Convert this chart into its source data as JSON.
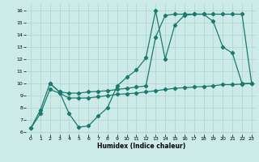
{
  "xlabel": "Humidex (Indice chaleur)",
  "bg_color": "#cceae8",
  "grid_color": "#afd4d2",
  "line_color": "#1a7a6e",
  "xlim": [
    -0.5,
    23.5
  ],
  "ylim": [
    5.8,
    16.6
  ],
  "xticks": [
    0,
    1,
    2,
    3,
    4,
    5,
    6,
    7,
    8,
    9,
    10,
    11,
    12,
    13,
    14,
    15,
    16,
    17,
    18,
    19,
    20,
    21,
    22,
    23
  ],
  "yticks": [
    6,
    7,
    8,
    9,
    10,
    11,
    12,
    13,
    14,
    15,
    16
  ],
  "line1_x": [
    0,
    1,
    2,
    3,
    4,
    5,
    6,
    7,
    8,
    9,
    10,
    11,
    12,
    13,
    14,
    15,
    16,
    17,
    18,
    19,
    20,
    21,
    22,
    23
  ],
  "line1_y": [
    6.3,
    7.8,
    10.0,
    9.3,
    7.5,
    6.4,
    6.5,
    7.3,
    8.0,
    9.8,
    10.5,
    11.1,
    12.1,
    16.0,
    12.0,
    14.8,
    15.6,
    15.7,
    15.7,
    15.1,
    13.0,
    12.5,
    10.0,
    10.0
  ],
  "line2_x": [
    2,
    3,
    4,
    5,
    6,
    7,
    8,
    9,
    10,
    11,
    12,
    13,
    14,
    15,
    16,
    17,
    18,
    19,
    20,
    21,
    22,
    23
  ],
  "line2_y": [
    10.0,
    9.3,
    9.2,
    9.2,
    9.3,
    9.35,
    9.4,
    9.5,
    9.6,
    9.7,
    9.8,
    13.8,
    15.6,
    15.7,
    15.7,
    15.7,
    15.7,
    15.7,
    15.7,
    15.7,
    15.7,
    10.0
  ],
  "line3_x": [
    0,
    1,
    2,
    3,
    4,
    5,
    6,
    7,
    8,
    9,
    10,
    11,
    12,
    13,
    14,
    15,
    16,
    17,
    18,
    19,
    20,
    21,
    22,
    23
  ],
  "line3_y": [
    6.3,
    7.5,
    9.5,
    9.2,
    8.8,
    8.8,
    8.8,
    8.9,
    9.0,
    9.1,
    9.15,
    9.2,
    9.3,
    9.4,
    9.5,
    9.6,
    9.65,
    9.7,
    9.75,
    9.8,
    9.9,
    9.9,
    9.95,
    10.0
  ]
}
